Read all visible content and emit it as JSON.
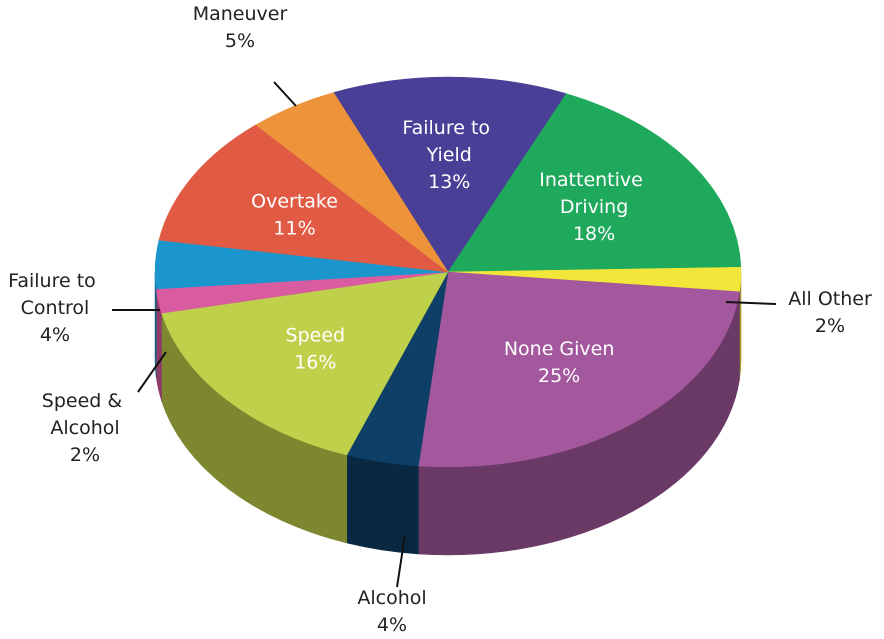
{
  "chart_data": {
    "type": "pie",
    "categories": [
      "Failure to Yield",
      "Inattentive Driving",
      "All Other",
      "None Given",
      "Alcohol",
      "Speed",
      "Speed & Alcohol",
      "Failure to Control",
      "Overtake",
      "Maneuver"
    ],
    "values": [
      13,
      18,
      2,
      25,
      4,
      16,
      2,
      4,
      11,
      5
    ],
    "value_labels": [
      "13%",
      "18%",
      "2%",
      "25%",
      "4%",
      "16%",
      "2%",
      "4%",
      "11%",
      "5%"
    ],
    "colors": [
      "#4a3f96",
      "#1fa95c",
      "#f2e63a",
      "#a3579d",
      "#0e3f66",
      "#bfd04a",
      "#d85c9f",
      "#1b96cd",
      "#e05a44",
      "#ed933a"
    ]
  }
}
